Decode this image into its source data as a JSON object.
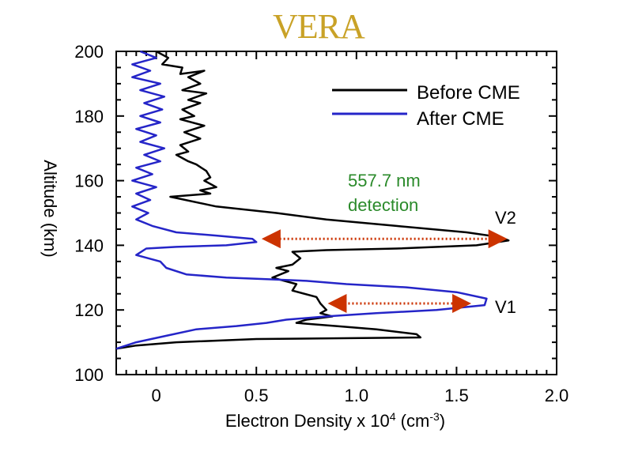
{
  "header": {
    "logo_text": "VERA"
  },
  "chart_data": {
    "type": "line",
    "title": "",
    "xlabel": "Electron Density x 10⁴ (cm⁻³)",
    "ylabel": "Altitude (km)",
    "xlim": [
      -0.2,
      2.0
    ],
    "ylim": [
      100,
      200
    ],
    "xticks": [
      0,
      0.5,
      1.0,
      1.5,
      2.0
    ],
    "xtick_labels": [
      "0",
      "0.5",
      "1.0",
      "1.5",
      "2.0"
    ],
    "yticks": [
      100,
      120,
      140,
      160,
      180,
      200
    ],
    "ytick_labels": [
      "100",
      "120",
      "140",
      "160",
      "180",
      "200"
    ],
    "legend": {
      "position": "top-right",
      "entries": [
        "Before CME",
        "After CME"
      ]
    },
    "series": [
      {
        "name": "Before CME",
        "color": "#000000",
        "points": [
          [
            0.0,
            200
          ],
          [
            0.06,
            198
          ],
          [
            0.03,
            196
          ],
          [
            0.13,
            195
          ],
          [
            0.12,
            193
          ],
          [
            0.24,
            194
          ],
          [
            0.16,
            192
          ],
          [
            0.22,
            190
          ],
          [
            0.13,
            188
          ],
          [
            0.25,
            187
          ],
          [
            0.16,
            185
          ],
          [
            0.22,
            184
          ],
          [
            0.13,
            182
          ],
          [
            0.19,
            180
          ],
          [
            0.12,
            179
          ],
          [
            0.24,
            177
          ],
          [
            0.14,
            175
          ],
          [
            0.22,
            173
          ],
          [
            0.12,
            171
          ],
          [
            0.16,
            169
          ],
          [
            0.1,
            168
          ],
          [
            0.16,
            166
          ],
          [
            0.2,
            165
          ],
          [
            0.25,
            163
          ],
          [
            0.27,
            161
          ],
          [
            0.24,
            160
          ],
          [
            0.3,
            158
          ],
          [
            0.22,
            157
          ],
          [
            0.27,
            156
          ],
          [
            0.07,
            155
          ],
          [
            0.3,
            152
          ],
          [
            0.6,
            150
          ],
          [
            0.85,
            148
          ],
          [
            1.2,
            146
          ],
          [
            1.55,
            144
          ],
          [
            1.72,
            142.5
          ],
          [
            1.76,
            141.5
          ],
          [
            1.6,
            140
          ],
          [
            1.2,
            139
          ],
          [
            0.85,
            138.5
          ],
          [
            0.68,
            138
          ],
          [
            0.72,
            136
          ],
          [
            0.68,
            134
          ],
          [
            0.6,
            133
          ],
          [
            0.66,
            132
          ],
          [
            0.58,
            130
          ],
          [
            0.7,
            128
          ],
          [
            0.68,
            126
          ],
          [
            0.8,
            124
          ],
          [
            0.82,
            122
          ],
          [
            0.85,
            120
          ],
          [
            0.82,
            119
          ],
          [
            0.88,
            118
          ],
          [
            0.75,
            117
          ],
          [
            0.7,
            116
          ],
          [
            0.9,
            115
          ],
          [
            1.1,
            114
          ],
          [
            1.3,
            112.5
          ],
          [
            1.32,
            111.5
          ],
          [
            0.5,
            111
          ],
          [
            0.1,
            110
          ],
          [
            -0.1,
            109
          ],
          [
            -0.2,
            108
          ]
        ]
      },
      {
        "name": "After CME",
        "color": "#2525c8",
        "points": [
          [
            -0.08,
            200
          ],
          [
            0.0,
            198
          ],
          [
            -0.12,
            196
          ],
          [
            -0.03,
            194
          ],
          [
            -0.12,
            192
          ],
          [
            0.02,
            190
          ],
          [
            -0.08,
            188
          ],
          [
            0.04,
            186
          ],
          [
            -0.06,
            184
          ],
          [
            0.03,
            182
          ],
          [
            -0.08,
            180
          ],
          [
            0.02,
            178
          ],
          [
            -0.1,
            176
          ],
          [
            0.0,
            174
          ],
          [
            -0.08,
            172
          ],
          [
            0.04,
            170
          ],
          [
            -0.06,
            168
          ],
          [
            0.02,
            166
          ],
          [
            -0.1,
            164
          ],
          [
            -0.02,
            162
          ],
          [
            -0.12,
            160
          ],
          [
            0.0,
            158
          ],
          [
            -0.1,
            156
          ],
          [
            -0.03,
            154
          ],
          [
            -0.12,
            152
          ],
          [
            -0.04,
            150
          ],
          [
            -0.1,
            148
          ],
          [
            -0.02,
            146
          ],
          [
            0.1,
            144
          ],
          [
            0.3,
            143
          ],
          [
            0.48,
            142
          ],
          [
            0.5,
            141
          ],
          [
            0.35,
            140
          ],
          [
            0.1,
            139.5
          ],
          [
            -0.05,
            139
          ],
          [
            -0.1,
            137
          ],
          [
            0.02,
            135
          ],
          [
            0.05,
            133
          ],
          [
            0.15,
            131
          ],
          [
            0.35,
            130
          ],
          [
            0.55,
            129.5
          ],
          [
            0.75,
            129
          ],
          [
            0.95,
            128
          ],
          [
            1.25,
            127
          ],
          [
            1.5,
            125.5
          ],
          [
            1.65,
            123.5
          ],
          [
            1.64,
            121.5
          ],
          [
            1.4,
            120
          ],
          [
            1.1,
            119
          ],
          [
            0.85,
            118
          ],
          [
            0.65,
            117
          ],
          [
            0.55,
            116
          ],
          [
            0.4,
            115
          ],
          [
            0.2,
            114
          ],
          [
            0.05,
            112
          ],
          [
            -0.1,
            110
          ],
          [
            -0.2,
            108
          ]
        ]
      }
    ],
    "annotations": [
      {
        "text_lines": [
          "557.7 nm",
          "detection"
        ],
        "color": "#2a8a2a"
      },
      {
        "text": "V2",
        "color": "#000000"
      },
      {
        "text": "V1",
        "color": "#000000"
      }
    ],
    "arrows": [
      {
        "name": "V2",
        "x_from": 1.73,
        "x_to": 0.55,
        "y": 142,
        "color": "#cc3300",
        "style": "dotted-double-headed"
      },
      {
        "name": "V1",
        "x_from": 0.88,
        "x_to": 1.55,
        "y": 122,
        "color": "#cc3300",
        "style": "dotted-double-headed"
      }
    ]
  }
}
